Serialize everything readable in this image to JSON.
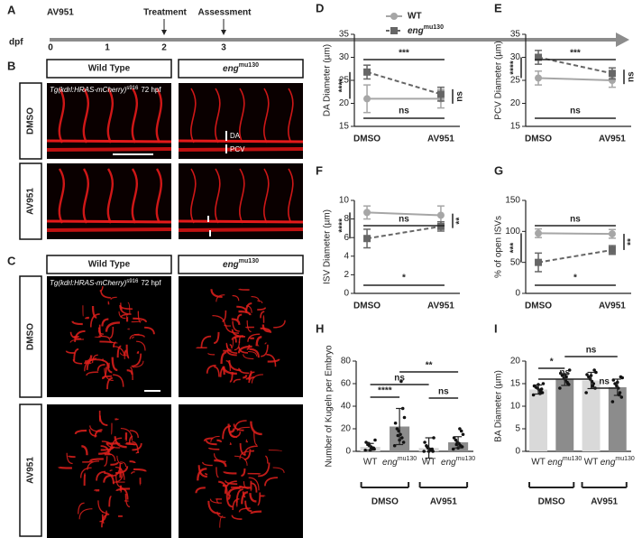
{
  "panel_labels": [
    "A",
    "B",
    "C"
  ],
  "timeline": {
    "drug": "AV951",
    "treatment": "Treatment",
    "assessment": "Assessment",
    "unit": "dpf",
    "days": [
      "0",
      "1",
      "2",
      "3"
    ]
  },
  "images": {
    "columns": [
      "Wild Type",
      {
        "text": "eng",
        "sup": "mu130"
      }
    ],
    "rows": [
      "DMSO",
      "AV951"
    ],
    "transgene": {
      "text": "Tg(kdrl:HRAS-mCherry)",
      "sup": "s916",
      "stage": "72 hpf"
    },
    "vessel_labels": [
      "DA",
      "PCV"
    ]
  },
  "chart_data": [
    {
      "type": "line",
      "panel": "D",
      "ylabel": "DA Diameter (µm)",
      "categories": [
        "DMSO",
        "AV951"
      ],
      "ylim": [
        15,
        35
      ],
      "yticks": [
        15,
        20,
        25,
        30,
        35
      ],
      "legend": true,
      "series": [
        {
          "name": "WT",
          "color": "#a6a6a6",
          "marker": "circle",
          "dashed": false,
          "values": [
            21,
            21
          ],
          "errors": [
            3,
            2
          ]
        },
        {
          "name": {
            "text": "eng",
            "sup": "mu130"
          },
          "color": "#666666",
          "marker": "square",
          "dashed": true,
          "values": [
            26.8,
            22
          ],
          "errors": [
            1.5,
            1.5
          ]
        }
      ],
      "annotations": [
        "***",
        "ns",
        "****",
        "ns"
      ]
    },
    {
      "type": "line",
      "panel": "E",
      "ylabel": "PCV Diameter (µm)",
      "categories": [
        "DMSO",
        "AV951"
      ],
      "ylim": [
        15,
        35
      ],
      "yticks": [
        15,
        20,
        25,
        30,
        35
      ],
      "legend": false,
      "series": [
        {
          "name": "WT",
          "color": "#a6a6a6",
          "marker": "circle",
          "dashed": false,
          "values": [
            25.5,
            25
          ],
          "errors": [
            1.5,
            1.5
          ]
        },
        {
          "name": {
            "text": "eng",
            "sup": "mu130"
          },
          "color": "#666666",
          "marker": "square",
          "dashed": true,
          "values": [
            30,
            26.5
          ],
          "errors": [
            1.5,
            1.2
          ]
        }
      ],
      "annotations": [
        "***",
        "ns",
        "****",
        "ns"
      ]
    },
    {
      "type": "line",
      "panel": "F",
      "ylabel": "ISV Diameter (µm)",
      "categories": [
        "DMSO",
        "AV951"
      ],
      "ylim": [
        0,
        10
      ],
      "yticks": [
        0,
        2,
        4,
        6,
        8,
        10
      ],
      "legend": false,
      "series": [
        {
          "name": "WT",
          "color": "#a6a6a6",
          "marker": "circle",
          "dashed": false,
          "values": [
            8.7,
            8.4
          ],
          "errors": [
            0.7,
            1.0
          ]
        },
        {
          "name": {
            "text": "eng",
            "sup": "mu130"
          },
          "color": "#666666",
          "marker": "square",
          "dashed": true,
          "values": [
            5.9,
            7.2
          ],
          "errors": [
            1.0,
            0.5
          ]
        }
      ],
      "annotations": [
        "ns",
        "*",
        "****",
        "**"
      ]
    },
    {
      "type": "line",
      "panel": "G",
      "ylabel": "% of open ISVs",
      "categories": [
        "DMSO",
        "AV951"
      ],
      "ylim": [
        0,
        150
      ],
      "yticks": [
        0,
        50,
        100,
        150
      ],
      "legend": false,
      "series": [
        {
          "name": "WT",
          "color": "#a6a6a6",
          "marker": "circle",
          "dashed": false,
          "values": [
            97,
            96
          ],
          "errors": [
            7,
            7
          ]
        },
        {
          "name": {
            "text": "eng",
            "sup": "mu130"
          },
          "color": "#666666",
          "marker": "square",
          "dashed": true,
          "values": [
            50,
            70
          ],
          "errors": [
            15,
            7
          ]
        }
      ],
      "annotations": [
        "ns",
        "*",
        "***",
        "**"
      ]
    },
    {
      "type": "bar",
      "panel": "H",
      "ylabel": "Number of Kugeln per Embryo",
      "categories": [
        "WT",
        {
          "text": "eng",
          "sup": "mu130"
        },
        "WT",
        {
          "text": "eng",
          "sup": "mu130"
        }
      ],
      "groups": [
        "DMSO",
        "AV951"
      ],
      "values": [
        4,
        22,
        3,
        8
      ],
      "errors": [
        3,
        16,
        9,
        5
      ],
      "colors": [
        "#d9d9d9",
        "#8c8c8c",
        "#d9d9d9",
        "#8c8c8c"
      ],
      "ylim": [
        0,
        80
      ],
      "yticks": [
        0,
        20,
        40,
        60,
        80
      ],
      "points": [
        [
          1,
          2,
          3,
          4,
          5,
          6,
          8,
          10,
          3,
          2,
          1,
          7
        ],
        [
          5,
          8,
          12,
          15,
          18,
          20,
          25,
          30,
          38,
          62,
          10,
          14
        ],
        [
          0,
          0,
          1,
          2,
          3,
          5,
          8,
          12,
          2,
          1,
          0,
          4
        ],
        [
          2,
          4,
          5,
          7,
          8,
          10,
          12,
          15,
          18,
          20,
          3,
          6
        ]
      ],
      "annotations": [
        "ns",
        "****",
        "**",
        "ns"
      ]
    },
    {
      "type": "bar",
      "panel": "I",
      "ylabel": "BA Diameter (µm)",
      "categories": [
        "WT",
        {
          "text": "eng",
          "sup": "mu130"
        },
        "WT",
        {
          "text": "eng",
          "sup": "mu130"
        }
      ],
      "groups": [
        "DMSO",
        "AV951"
      ],
      "values": [
        13.7,
        15.9,
        15.7,
        14.2
      ],
      "errors": [
        1,
        1.3,
        1.8,
        1.8
      ],
      "colors": [
        "#d9d9d9",
        "#8c8c8c",
        "#d9d9d9",
        "#8c8c8c"
      ],
      "ylim": [
        0,
        20
      ],
      "yticks": [
        0,
        5,
        10,
        15,
        20
      ],
      "points": [
        [
          12.5,
          13,
          13.3,
          13.6,
          14,
          14.2,
          14.5,
          15,
          13.8,
          12.8,
          14.8
        ],
        [
          14,
          14.8,
          15.3,
          15.8,
          16.2,
          16.8,
          17.3,
          18,
          15,
          16.5,
          17
        ],
        [
          13,
          14,
          15,
          15.5,
          16,
          16.5,
          17,
          17.5,
          18,
          14.5,
          16.8
        ],
        [
          11,
          12,
          13,
          14,
          14.5,
          15,
          15.8,
          16.3,
          16.5,
          12.5,
          15.3
        ]
      ],
      "annotations": [
        "*",
        "ns",
        "ns",
        "ns"
      ]
    }
  ]
}
